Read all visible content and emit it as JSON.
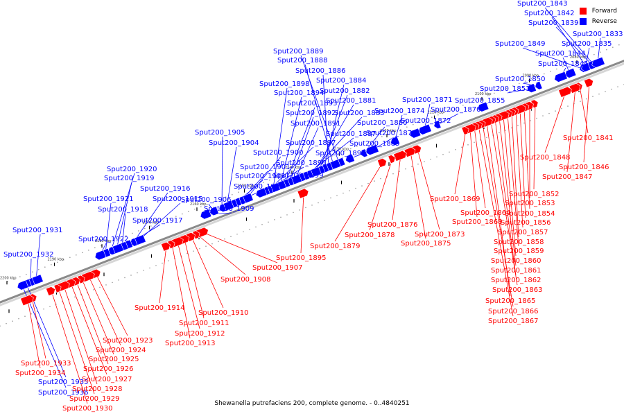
{
  "caption": "Shewanella putrefaciens 200, complete genome. - 0..4840251",
  "legend": [
    {
      "label": "Forward",
      "color": "#ff0000"
    },
    {
      "label": "Reverse",
      "color": "#0000ff"
    }
  ],
  "colors": {
    "forward": "#ff0000",
    "reverse": "#0000ff",
    "backbone": "#8a8a8a"
  },
  "scale_ticks": [
    "2080 kbp",
    "2090 kbp",
    "2100 kbp",
    "2110 kbp",
    "2120 kbp",
    "2130 kbp",
    "2140 kbp",
    "2150 kbp",
    "2160 kbp",
    "2170 kbp",
    "2180 kbp",
    "2190 kbp",
    "2200 kbp"
  ],
  "reverse_genes": [
    "Sput200_1843",
    "Sput200_1842",
    "Sput200_1839",
    "Sput200_1833",
    "Sput200_1849",
    "Sput200_1835",
    "Sput200_1844",
    "Sput200_1845",
    "Sput200_1850",
    "Sput200_1851",
    "Sput200_1855",
    "Sput200_1871",
    "Sput200_1870",
    "Sput200_1874",
    "Sput200_1872",
    "Sput200_1877",
    "Sput200_1880",
    "Sput200_1885",
    "Sput200_1889",
    "Sput200_1888",
    "Sput200_1886",
    "Sput200_1884",
    "Sput200_1882",
    "Sput200_1881",
    "Sput200_1883",
    "Sput200_1887",
    "Sput200_1890",
    "Sput200_1891",
    "Sput200_1892",
    "Sput200_1893",
    "Sput200_1894",
    "Sput200_1898",
    "Sput200_1897",
    "Sput200_1896",
    "Sput200_1899",
    "Sput200_1900",
    "Sput200_1901",
    "Sput200_1903",
    "Sput200_1902",
    "Sput200_1904",
    "Sput200_1905",
    "Sput200_1906",
    "Sput200_1909",
    "Sput200_1915",
    "Sput200_1916",
    "Sput200_1917",
    "Sput200_1918",
    "Sput200_1919",
    "Sput200_1920",
    "Sput200_1921",
    "Sput200_1922",
    "Sput200_1931",
    "Sput200_1932",
    "Sput200_1935",
    "Sput200_1936"
  ],
  "forward_genes": [
    "Sput200_1841",
    "Sput200_1846",
    "Sput200_1847",
    "Sput200_1848",
    "Sput200_1852",
    "Sput200_1853",
    "Sput200_1854",
    "Sput200_1856",
    "Sput200_1857",
    "Sput200_1858",
    "Sput200_1859",
    "Sput200_1860",
    "Sput200_1861",
    "Sput200_1862",
    "Sput200_1863",
    "Sput200_1865",
    "Sput200_1866",
    "Sput200_1867",
    "Sput200_1864",
    "Sput200_1868",
    "Sput200_1869",
    "Sput200_1873",
    "Sput200_1875",
    "Sput200_1876",
    "Sput200_1878",
    "Sput200_1879",
    "Sput200_1895",
    "Sput200_1907",
    "Sput200_1908",
    "Sput200_1910",
    "Sput200_1911",
    "Sput200_1912",
    "Sput200_1913",
    "Sput200_1914",
    "Sput200_1923",
    "Sput200_1924",
    "Sput200_1925",
    "Sput200_1926",
    "Sput200_1927",
    "Sput200_1928",
    "Sput200_1929",
    "Sput200_1930",
    "Sput200_1933",
    "Sput200_1934"
  ]
}
